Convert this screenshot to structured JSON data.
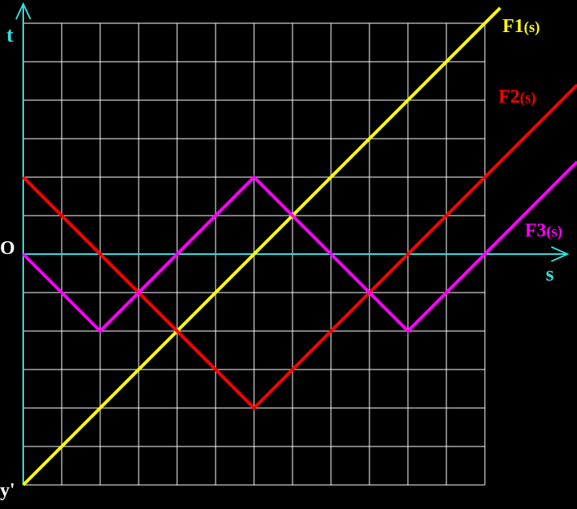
{
  "colors": {
    "background": "#000000",
    "grid": "#ffffff",
    "axis": "#33dddd",
    "F1": "#ffff00",
    "F2": "#ff0000",
    "F3": "#ff00ff"
  },
  "labels": {
    "x_axis": "s",
    "y_axis": "t",
    "origin": "O",
    "y_prime": "y'"
  },
  "chart_data": {
    "type": "line",
    "grid": true,
    "xlim": [
      0,
      12
    ],
    "ylim": [
      -6,
      6
    ],
    "series": [
      {
        "name": "F1(s)",
        "name_main": "F1",
        "name_sub": "(s)",
        "color": "#ffff00",
        "x": [
          0,
          12.4
        ],
        "y": [
          -6,
          6.4
        ]
      },
      {
        "name": "F2(s)",
        "name_main": "F2",
        "name_sub": "(s)",
        "color": "#ff0000",
        "x": [
          0,
          6,
          14.4
        ],
        "y": [
          2,
          -4,
          4.4
        ]
      },
      {
        "name": "F3(s)",
        "name_main": "F3",
        "name_sub": "(s)",
        "color": "#ff00ff",
        "x": [
          0,
          2,
          6,
          10,
          14.4
        ],
        "y": [
          0,
          -2,
          2,
          -2,
          2.4
        ]
      }
    ]
  }
}
